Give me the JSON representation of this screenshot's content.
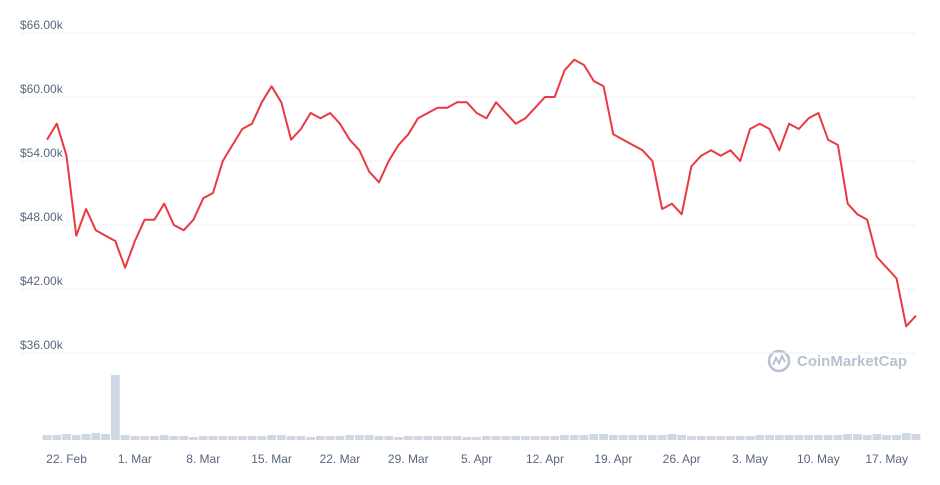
{
  "chart_data": {
    "type": "line",
    "watermark": "CoinMarketCap",
    "categories": [
      null,
      null,
      "22. Feb",
      null,
      null,
      null,
      null,
      null,
      null,
      "1. Mar",
      null,
      null,
      null,
      null,
      null,
      null,
      "8. Mar",
      null,
      null,
      null,
      null,
      null,
      null,
      "15. Mar",
      null,
      null,
      null,
      null,
      null,
      null,
      "22. Mar",
      null,
      null,
      null,
      null,
      null,
      null,
      "29. Mar",
      null,
      null,
      null,
      null,
      null,
      null,
      "5. Apr",
      null,
      null,
      null,
      null,
      null,
      null,
      "12. Apr",
      null,
      null,
      null,
      null,
      null,
      null,
      "19. Apr",
      null,
      null,
      null,
      null,
      null,
      null,
      "26. Apr",
      null,
      null,
      null,
      null,
      null,
      null,
      "3. May",
      null,
      null,
      null,
      null,
      null,
      null,
      "10. May",
      null,
      null,
      null,
      null,
      null,
      null,
      "17. May",
      null,
      null,
      null
    ],
    "series": [
      {
        "color": "#ea3943",
        "values": [
          56000,
          57500,
          54500,
          47000,
          49500,
          47500,
          47000,
          46500,
          44000,
          46500,
          48500,
          48500,
          50000,
          48000,
          47500,
          48500,
          50500,
          51000,
          54000,
          55500,
          57000,
          57500,
          59500,
          61000,
          59500,
          56000,
          57000,
          58500,
          58000,
          58500,
          57500,
          56000,
          55000,
          53000,
          52000,
          54000,
          55500,
          56500,
          58000,
          58500,
          59000,
          59000,
          59500,
          59500,
          58500,
          58000,
          59500,
          58500,
          57500,
          58000,
          59000,
          60000,
          60000,
          62500,
          63500,
          63000,
          61500,
          61000,
          56500,
          56000,
          55500,
          55000,
          54000,
          49500,
          50000,
          49000,
          53500,
          54500,
          55000,
          54500,
          55000,
          54000,
          57000,
          57500,
          57000,
          55000,
          57500,
          57000,
          58000,
          58500,
          56000,
          55500,
          50000,
          49000,
          48500,
          45000,
          44000,
          43000,
          38500,
          39500
        ]
      },
      {
        "color": "#cfd6e4",
        "axis": "y2",
        "values": [
          5,
          5,
          6,
          5,
          6,
          7,
          6,
          65,
          5,
          4,
          4,
          4,
          5,
          4,
          4,
          3,
          4,
          4,
          4,
          4,
          4,
          4,
          4,
          5,
          5,
          4,
          4,
          3,
          4,
          4,
          4,
          5,
          5,
          5,
          4,
          4,
          3,
          4,
          4,
          4,
          4,
          4,
          4,
          3,
          3,
          4,
          4,
          4,
          4,
          4,
          4,
          4,
          4,
          5,
          5,
          5,
          6,
          6,
          5,
          5,
          5,
          5,
          5,
          5,
          6,
          5,
          4,
          4,
          4,
          4,
          4,
          4,
          4,
          5,
          5,
          5,
          5,
          5,
          5,
          5,
          5,
          5,
          6,
          6,
          5,
          6,
          5,
          5,
          7,
          6
        ]
      }
    ],
    "ylim": [
      36000,
      66000
    ],
    "yticks": [
      {
        "value": 36000,
        "label": "$36.00k"
      },
      {
        "value": 42000,
        "label": "$42.00k"
      },
      {
        "value": 48000,
        "label": "$48.00k"
      },
      {
        "value": 54000,
        "label": "$54.00k"
      },
      {
        "value": 60000,
        "label": "$60.00k"
      },
      {
        "value": 66000,
        "label": "$66.00k"
      }
    ],
    "y2lim": [
      0,
      70
    ],
    "grid": true
  }
}
